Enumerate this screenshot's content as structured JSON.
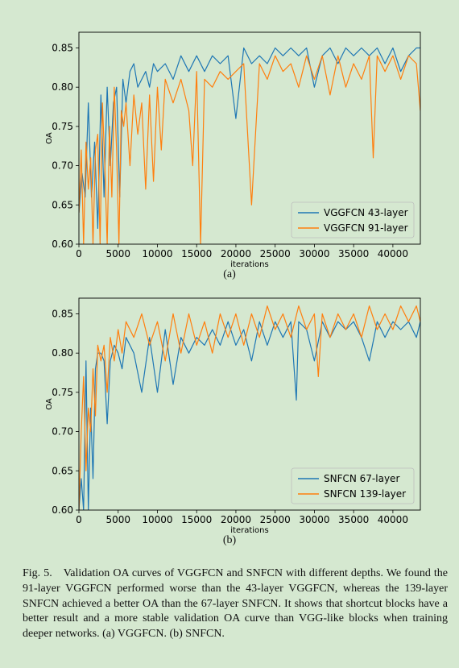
{
  "figure": {
    "label": "Fig. 5.",
    "caption": "Validation OA curves of VGGFCN and SNFCN with different depths. We found the 91-layer VGGFCN performed worse than the 43-layer VGGFCN, whereas the 139-layer SNFCN achieved a better OA than the 67-layer SNFCN. It shows that shortcut blocks have a better result and a more stable validation OA curve than VGG-like blocks when training deeper networks. (a) VGGFCN. (b) SNFCN."
  },
  "colors": {
    "series1": "#1f77b4",
    "series2": "#ff7f0e",
    "background": "#d5e8d0"
  },
  "chart_data": [
    {
      "type": "line",
      "sublabel": "(a)",
      "xlabel": "iterations",
      "ylabel": "OA",
      "xlim": [
        0,
        43500
      ],
      "ylim": [
        0.6,
        0.87
      ],
      "xticks": [
        0,
        5000,
        10000,
        15000,
        20000,
        25000,
        30000,
        35000,
        40000
      ],
      "yticks": [
        0.6,
        0.65,
        0.7,
        0.75,
        0.8,
        0.85
      ],
      "legend": "lower-right",
      "grid": false,
      "series": [
        {
          "name": "VGGFCN 43-layer",
          "x": [
            0,
            400,
            800,
            1200,
            1600,
            2000,
            2400,
            2800,
            3200,
            3600,
            4000,
            4400,
            4800,
            5200,
            5600,
            6000,
            6500,
            7000,
            7500,
            8000,
            8500,
            9000,
            9500,
            10000,
            11000,
            12000,
            13000,
            14000,
            15000,
            16000,
            17000,
            18000,
            19000,
            20000,
            21000,
            22000,
            23000,
            24000,
            25000,
            26000,
            27000,
            28000,
            29000,
            30000,
            31000,
            32000,
            33000,
            34000,
            35000,
            36000,
            37000,
            38000,
            39000,
            40000,
            41000,
            42000,
            43000,
            43500
          ],
          "y": [
            0.64,
            0.69,
            0.66,
            0.78,
            0.66,
            0.73,
            0.62,
            0.79,
            0.66,
            0.8,
            0.7,
            0.78,
            0.8,
            0.66,
            0.81,
            0.78,
            0.82,
            0.83,
            0.8,
            0.81,
            0.82,
            0.8,
            0.83,
            0.82,
            0.83,
            0.81,
            0.84,
            0.82,
            0.84,
            0.82,
            0.84,
            0.83,
            0.84,
            0.76,
            0.85,
            0.83,
            0.84,
            0.83,
            0.85,
            0.84,
            0.85,
            0.84,
            0.85,
            0.8,
            0.84,
            0.85,
            0.83,
            0.85,
            0.84,
            0.85,
            0.84,
            0.85,
            0.83,
            0.85,
            0.82,
            0.84,
            0.85,
            0.85
          ]
        },
        {
          "name": "VGGFCN 91-layer",
          "x": [
            0,
            300,
            600,
            900,
            1200,
            1500,
            1800,
            2100,
            2400,
            2700,
            3000,
            3300,
            3600,
            3900,
            4200,
            4500,
            4800,
            5100,
            5400,
            5700,
            6000,
            6500,
            7000,
            7500,
            8000,
            8500,
            9000,
            9500,
            10000,
            10500,
            11000,
            12000,
            13000,
            14000,
            14500,
            15000,
            15500,
            16000,
            17000,
            18000,
            19000,
            20000,
            21000,
            22000,
            23000,
            24000,
            25000,
            26000,
            27000,
            28000,
            29000,
            30000,
            31000,
            32000,
            33000,
            34000,
            35000,
            36000,
            37000,
            37500,
            38000,
            39000,
            40000,
            41000,
            42000,
            43000,
            43500
          ],
          "y": [
            0.64,
            0.72,
            0.6,
            0.73,
            0.67,
            0.71,
            0.6,
            0.72,
            0.74,
            0.6,
            0.78,
            0.7,
            0.6,
            0.75,
            0.66,
            0.8,
            0.72,
            0.6,
            0.77,
            0.75,
            0.78,
            0.7,
            0.79,
            0.74,
            0.78,
            0.67,
            0.79,
            0.68,
            0.8,
            0.72,
            0.81,
            0.78,
            0.81,
            0.77,
            0.7,
            0.82,
            0.6,
            0.81,
            0.8,
            0.82,
            0.81,
            0.82,
            0.83,
            0.65,
            0.83,
            0.81,
            0.84,
            0.82,
            0.83,
            0.8,
            0.84,
            0.81,
            0.84,
            0.79,
            0.84,
            0.8,
            0.83,
            0.81,
            0.84,
            0.71,
            0.84,
            0.82,
            0.84,
            0.81,
            0.84,
            0.83,
            0.77
          ]
        }
      ]
    },
    {
      "type": "line",
      "sublabel": "(b)",
      "xlabel": "iterations",
      "ylabel": "OA",
      "xlim": [
        0,
        43500
      ],
      "ylim": [
        0.6,
        0.87
      ],
      "xticks": [
        0,
        5000,
        10000,
        15000,
        20000,
        25000,
        30000,
        35000,
        40000
      ],
      "yticks": [
        0.6,
        0.65,
        0.7,
        0.75,
        0.8,
        0.85
      ],
      "legend": "lower-right",
      "grid": false,
      "series": [
        {
          "name": "SNFCN 67-layer",
          "x": [
            0,
            300,
            600,
            900,
            1200,
            1500,
            1800,
            2100,
            2400,
            2800,
            3200,
            3600,
            4000,
            4500,
            5000,
            5500,
            6000,
            7000,
            8000,
            9000,
            10000,
            11000,
            12000,
            13000,
            14000,
            15000,
            16000,
            17000,
            18000,
            19000,
            20000,
            21000,
            22000,
            23000,
            24000,
            25000,
            26000,
            27000,
            27700,
            28000,
            29000,
            30000,
            31000,
            32000,
            33000,
            34000,
            35000,
            36000,
            37000,
            38000,
            39000,
            40000,
            41000,
            42000,
            43000,
            43500
          ],
          "y": [
            0.6,
            0.64,
            0.6,
            0.79,
            0.6,
            0.73,
            0.64,
            0.78,
            0.8,
            0.8,
            0.79,
            0.71,
            0.79,
            0.81,
            0.8,
            0.78,
            0.82,
            0.8,
            0.75,
            0.82,
            0.75,
            0.83,
            0.76,
            0.82,
            0.8,
            0.82,
            0.81,
            0.83,
            0.81,
            0.84,
            0.81,
            0.83,
            0.79,
            0.84,
            0.81,
            0.84,
            0.82,
            0.84,
            0.74,
            0.84,
            0.83,
            0.79,
            0.84,
            0.82,
            0.84,
            0.83,
            0.84,
            0.82,
            0.79,
            0.84,
            0.82,
            0.84,
            0.83,
            0.84,
            0.82,
            0.84
          ]
        },
        {
          "name": "SNFCN 139-layer",
          "x": [
            0,
            300,
            600,
            900,
            1200,
            1500,
            1800,
            2100,
            2400,
            2800,
            3200,
            3600,
            4000,
            4500,
            5000,
            5500,
            6000,
            7000,
            8000,
            9000,
            10000,
            11000,
            12000,
            13000,
            14000,
            15000,
            16000,
            17000,
            18000,
            19000,
            20000,
            21000,
            22000,
            23000,
            24000,
            25000,
            26000,
            27000,
            28000,
            29000,
            30000,
            30500,
            31000,
            32000,
            33000,
            34000,
            35000,
            36000,
            37000,
            38000,
            39000,
            40000,
            41000,
            42000,
            43000,
            43500
          ],
          "y": [
            0.6,
            0.7,
            0.77,
            0.65,
            0.73,
            0.7,
            0.78,
            0.72,
            0.81,
            0.79,
            0.81,
            0.75,
            0.82,
            0.79,
            0.83,
            0.8,
            0.84,
            0.82,
            0.85,
            0.81,
            0.84,
            0.79,
            0.85,
            0.8,
            0.85,
            0.81,
            0.84,
            0.8,
            0.85,
            0.82,
            0.85,
            0.81,
            0.85,
            0.82,
            0.86,
            0.83,
            0.85,
            0.82,
            0.86,
            0.83,
            0.85,
            0.77,
            0.85,
            0.82,
            0.85,
            0.83,
            0.85,
            0.82,
            0.86,
            0.83,
            0.85,
            0.83,
            0.86,
            0.84,
            0.86,
            0.84
          ]
        }
      ]
    }
  ]
}
